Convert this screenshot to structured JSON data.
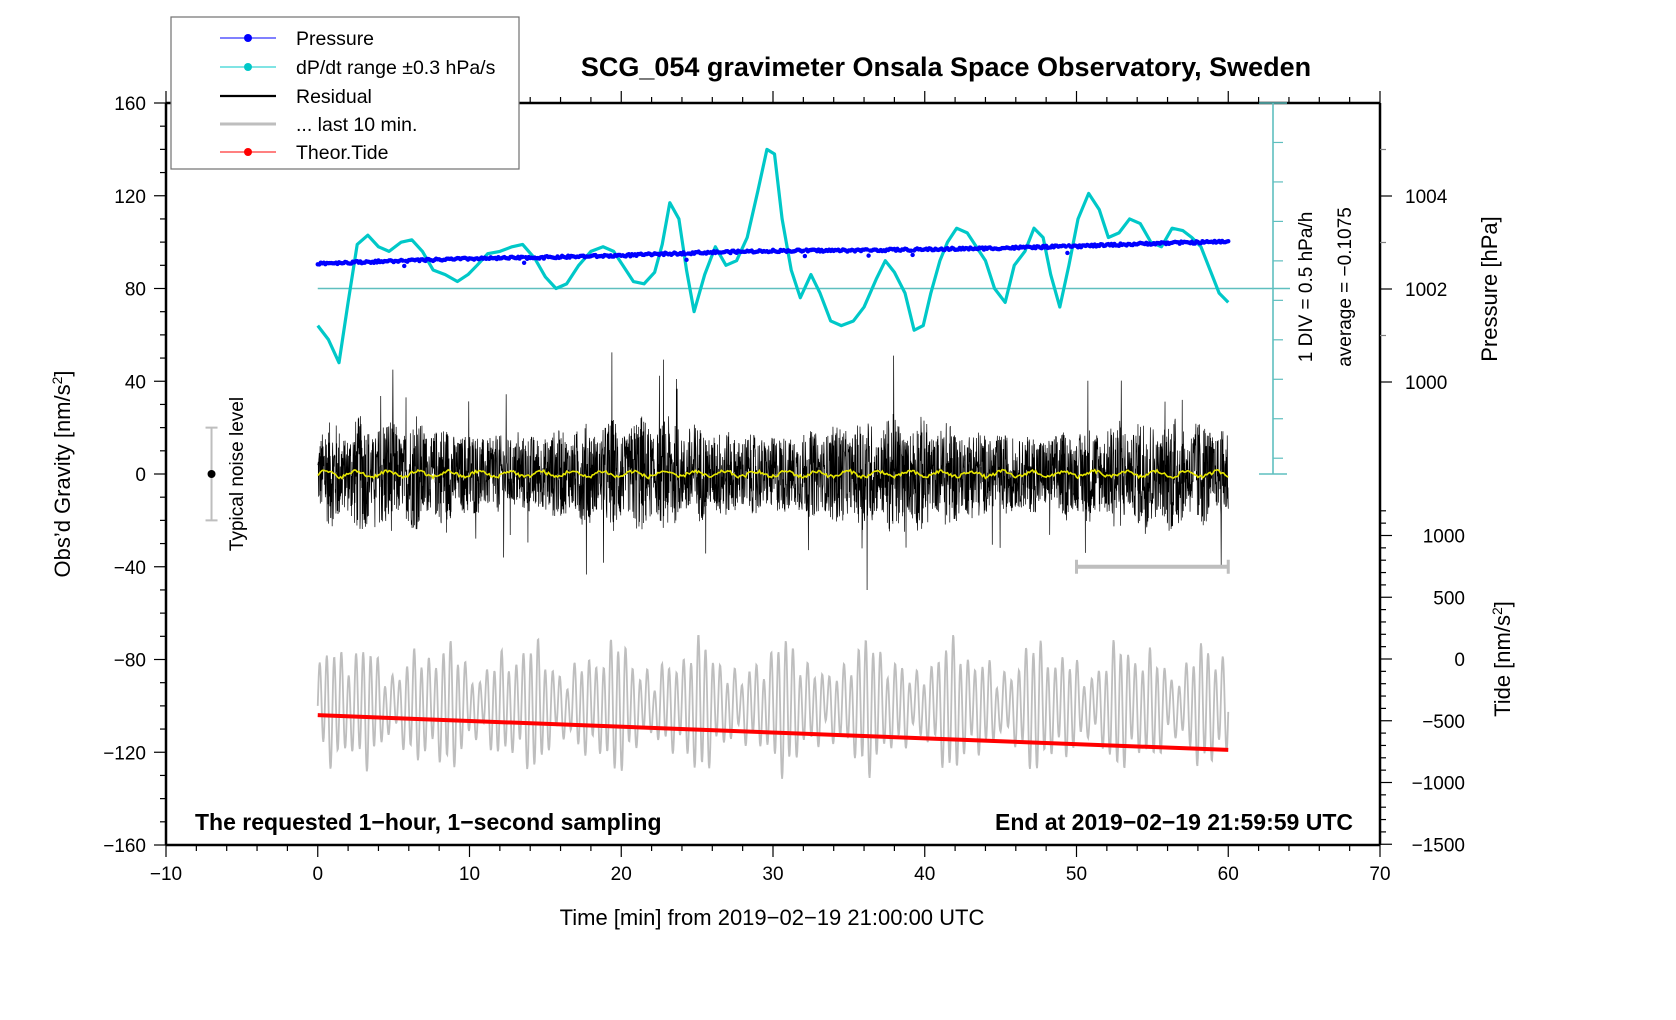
{
  "chart_data": {
    "type": "line",
    "title": "SCG_054 gravimeter Onsala Space Observatory, Sweden",
    "xlabel": "Time [min] from 2019−02−19 21:00:00 UTC",
    "ylabel_left": "Obs’d Gravity [nm/s²]",
    "ylabel_left_base": "Obs’d Gravity [nm/s",
    "ylabel_left_sup": "2",
    "ylabel_left_end": "]",
    "ylabel_pressure": "Pressure [hPa]",
    "ylabel_tide_base": "Tide [nm/s",
    "ylabel_tide_sup": "2",
    "ylabel_tide_end": "]",
    "xlim": [
      -10,
      70
    ],
    "ylim_left": [
      -160,
      160
    ],
    "ylim_pressure_ticks": [
      1000,
      1002,
      1004
    ],
    "ylim_tide": [
      -1500,
      1000
    ],
    "x_ticks": [
      -10,
      0,
      10,
      20,
      30,
      40,
      50,
      60,
      70
    ],
    "x_tick_labels": [
      "−10",
      "0",
      "10",
      "20",
      "30",
      "40",
      "50",
      "60",
      "70"
    ],
    "y_left_ticks": [
      160,
      120,
      80,
      40,
      0,
      -40,
      -80,
      -120,
      -160
    ],
    "y_left_tick_labels": [
      "160",
      "120",
      "80",
      "40",
      "0",
      "−40",
      "−80",
      "−120",
      "−160"
    ],
    "y_pressure_ticks": [
      1004,
      1002,
      1000
    ],
    "y_pressure_tick_labels": [
      "1004",
      "1002",
      "1000"
    ],
    "y_tide_ticks": [
      1000,
      500,
      0,
      -500,
      -1000,
      -1500
    ],
    "y_tide_tick_labels": [
      "1000",
      "500",
      "0",
      "−500",
      "−1000",
      "−1500"
    ],
    "grid": false,
    "legend_position": "top-left",
    "legend": [
      {
        "label": "Pressure",
        "color": "#0000ff",
        "marker": "dot"
      },
      {
        "label": "dP/dt range ±0.3 hPa/s",
        "color": "#00c8c8",
        "marker": "dot"
      },
      {
        "label": "Residual",
        "color": "#000000",
        "marker": "none"
      },
      {
        "label": "... last 10 min.",
        "color": "#bebebe",
        "marker": "none"
      },
      {
        "label": "Theor.Tide",
        "color": "#ff0000",
        "marker": "dot"
      }
    ],
    "annotations": {
      "bottom_left": "The requested 1−hour, 1−second sampling",
      "bottom_right": "End at 2019−02−19 21:59:59 UTC",
      "dpdt_scale": "1 DIV = 0.5 hPa/h",
      "dpdt_average": "average = −0.1075",
      "noise_label": "Typical noise level"
    },
    "series": [
      {
        "name": "Pressure",
        "axis": "pressure_hPa",
        "color": "#0000ff",
        "x": [
          0,
          5,
          10,
          15,
          20,
          25,
          30,
          35,
          40,
          45,
          50,
          55,
          60
        ],
        "values": [
          1002.55,
          1002.6,
          1002.65,
          1002.68,
          1002.72,
          1002.78,
          1002.82,
          1002.83,
          1002.85,
          1002.88,
          1002.92,
          1002.98,
          1003.02
        ]
      },
      {
        "name": "dP/dt",
        "axis": "gravity_left_scaled",
        "color": "#00c8c8",
        "zero_level_left": 80,
        "x": [
          0,
          0.7,
          1.4,
          2.0,
          2.6,
          3.3,
          4.0,
          4.7,
          5.5,
          6.2,
          6.9,
          7.6,
          8.4,
          9.2,
          9.9,
          10.5,
          11.2,
          12.0,
          12.8,
          13.5,
          14.3,
          15.0,
          15.7,
          16.4,
          17.2,
          18.0,
          18.8,
          19.5,
          20.1,
          20.8,
          21.5,
          22.2,
          22.7,
          23.2,
          23.8,
          24.3,
          24.8,
          25.5,
          26.2,
          26.9,
          27.6,
          28.3,
          29.0,
          29.6,
          30.1,
          30.6,
          31.2,
          31.8,
          32.5,
          33.1,
          33.8,
          34.5,
          35.3,
          36.0,
          36.8,
          37.4,
          38.0,
          38.7,
          39.3,
          39.9,
          40.4,
          41.0,
          41.5,
          42.1,
          42.8,
          43.4,
          44.0,
          44.6,
          45.3,
          45.9,
          46.6,
          47.2,
          47.8,
          48.3,
          48.9,
          49.5,
          50.1,
          50.8,
          51.5,
          52.1,
          52.8,
          53.5,
          54.2,
          54.9,
          55.6,
          56.3,
          57.0,
          57.6,
          58.2,
          58.8,
          59.4,
          60
        ],
        "values": [
          64,
          58,
          48,
          74,
          99,
          103,
          98,
          96,
          100,
          101,
          96,
          88,
          86,
          83,
          86,
          90,
          95,
          96,
          98,
          99,
          93,
          85,
          80,
          82,
          90,
          96,
          98,
          96,
          90,
          83,
          82,
          87,
          99,
          117,
          110,
          88,
          70,
          86,
          98,
          90,
          92,
          102,
          122,
          140,
          138,
          110,
          88,
          76,
          86,
          78,
          66,
          64,
          66,
          72,
          84,
          92,
          87,
          78,
          62,
          64,
          78,
          92,
          100,
          106,
          104,
          98,
          92,
          80,
          74,
          90,
          96,
          106,
          102,
          86,
          72,
          90,
          110,
          121,
          114,
          102,
          104,
          110,
          108,
          100,
          98,
          106,
          105,
          102,
          98,
          88,
          78,
          74
        ]
      },
      {
        "name": "Residual",
        "axis": "gravity_left",
        "color": "#000000",
        "x_range": [
          0,
          60
        ],
        "typical_amplitude": 20,
        "max": 58,
        "min": -67
      },
      {
        "name": "Residual smoothed",
        "axis": "gravity_left",
        "color": "#e6e600",
        "x": [
          0,
          60
        ],
        "values": [
          0,
          0
        ]
      },
      {
        "name": "... last 10 min.",
        "axis": "gravity_left",
        "color": "#bebebe",
        "x_range": [
          50,
          60
        ],
        "level": -40
      },
      {
        "name": "Oscillation (grey)",
        "axis": "gravity_left",
        "color": "#bebebe",
        "x_range": [
          0,
          60
        ],
        "center": -100,
        "amplitude": 28
      },
      {
        "name": "Theor.Tide",
        "axis": "tide",
        "color": "#ff0000",
        "x": [
          0,
          60
        ],
        "values_left_axis": [
          -104,
          -119
        ]
      }
    ],
    "noise_level_bar": {
      "x": -7,
      "center": 0,
      "low": -20,
      "high": 20
    }
  }
}
